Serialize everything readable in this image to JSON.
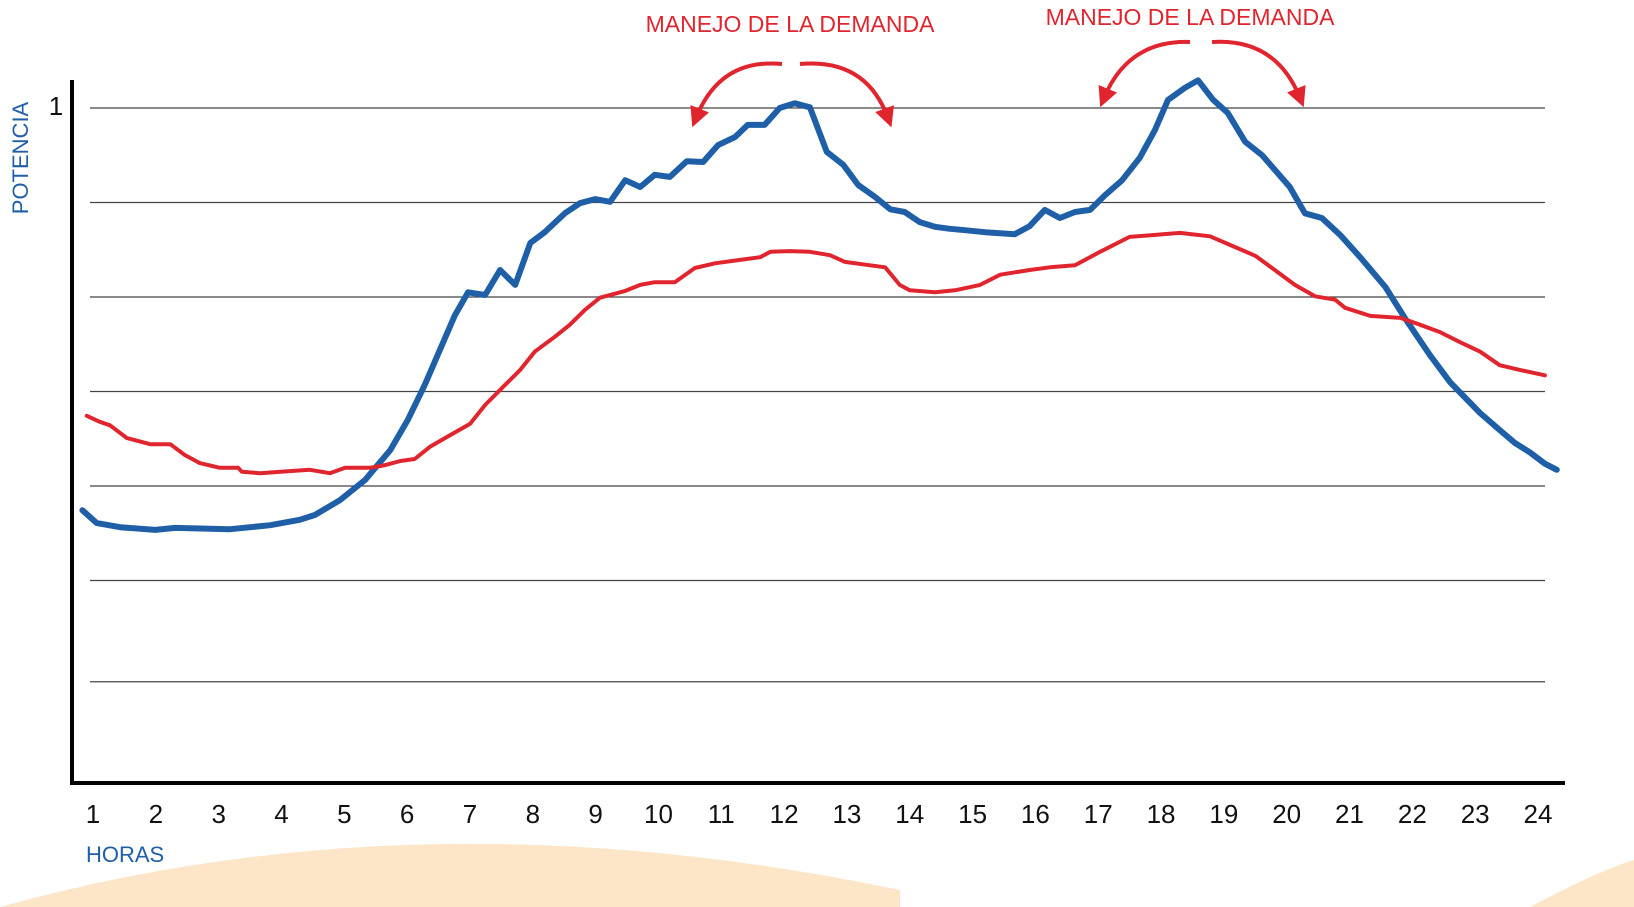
{
  "chart_data": {
    "type": "line",
    "annotations": [
      "MANEJO DE LA DEMANDA",
      "MANEJO DE LA DEMANDA"
    ],
    "y_label": "POTENCIA",
    "x_label": "HORAS",
    "xlim": [
      0.665,
      24.43
    ],
    "ylim": [
      0,
      1.06
    ],
    "xticks": [
      1,
      2,
      3,
      4,
      5,
      6,
      7,
      8,
      9,
      10,
      11,
      12,
      13,
      14,
      15,
      16,
      17,
      18,
      19,
      20,
      21,
      22,
      23,
      24
    ],
    "yticks": [
      1
    ],
    "ygrid": [
      0.15,
      0.3,
      0.44,
      0.58,
      0.72,
      0.86,
      1
    ],
    "grid": true,
    "series": [
      {
        "color": "#1f5fa8",
        "x": [
          0.83,
          1.06,
          1.43,
          1.99,
          2.31,
          3.18,
          3.82,
          4.29,
          4.53,
          4.93,
          5.33,
          5.73,
          6.01,
          6.28,
          6.76,
          6.97,
          7.24,
          7.48,
          7.72,
          7.96,
          8.19,
          8.51,
          8.75,
          8.99,
          9.23,
          9.47,
          9.71,
          9.94,
          10.18,
          10.45,
          10.71,
          10.95,
          11.22,
          11.42,
          11.69,
          11.93,
          12.17,
          12.41,
          12.68,
          12.94,
          13.18,
          13.45,
          13.69,
          13.92,
          14.16,
          14.4,
          14.64,
          14.88,
          15.2,
          15.67,
          15.91,
          16.15,
          16.39,
          16.63,
          16.87,
          17.11,
          17.38,
          17.66,
          17.9,
          18.11,
          18.38,
          18.59,
          18.83,
          19.06,
          19.34,
          19.61,
          20.05,
          20.29,
          20.56,
          20.85,
          21.17,
          21.57,
          21.88,
          22.28,
          22.6,
          23.08,
          23.39,
          23.63,
          23.87,
          24.11,
          24.3
        ],
        "values": [
          0.404,
          0.385,
          0.379,
          0.375,
          0.378,
          0.376,
          0.382,
          0.39,
          0.397,
          0.419,
          0.449,
          0.493,
          0.538,
          0.59,
          0.693,
          0.727,
          0.723,
          0.76,
          0.738,
          0.8,
          0.816,
          0.844,
          0.859,
          0.865,
          0.861,
          0.893,
          0.883,
          0.901,
          0.898,
          0.921,
          0.92,
          0.945,
          0.957,
          0.975,
          0.975,
          1.0,
          1.007,
          1.001,
          0.935,
          0.916,
          0.886,
          0.868,
          0.85,
          0.846,
          0.831,
          0.824,
          0.821,
          0.819,
          0.816,
          0.813,
          0.825,
          0.849,
          0.837,
          0.846,
          0.849,
          0.871,
          0.893,
          0.926,
          0.967,
          1.012,
          1.03,
          1.041,
          1.012,
          0.993,
          0.95,
          0.93,
          0.883,
          0.844,
          0.837,
          0.812,
          0.779,
          0.735,
          0.689,
          0.634,
          0.594,
          0.548,
          0.523,
          0.504,
          0.49,
          0.473,
          0.464
        ]
      },
      {
        "color": "#e0252f",
        "x": [
          0.9,
          1.11,
          1.27,
          1.54,
          1.91,
          2.23,
          2.46,
          2.7,
          3.02,
          3.31,
          3.37,
          3.66,
          3.98,
          4.45,
          4.77,
          5.01,
          5.41,
          5.65,
          5.89,
          6.12,
          6.36,
          6.6,
          7.0,
          7.24,
          7.56,
          7.8,
          8.03,
          8.35,
          8.59,
          8.83,
          9.07,
          9.47,
          9.71,
          9.94,
          10.26,
          10.58,
          10.9,
          11.3,
          11.62,
          11.78,
          12.09,
          12.41,
          12.73,
          12.97,
          13.37,
          13.61,
          13.84,
          14.0,
          14.4,
          14.72,
          15.12,
          15.44,
          15.91,
          16.23,
          16.63,
          17.03,
          17.5,
          18.3,
          18.78,
          19.18,
          19.5,
          19.81,
          20.13,
          20.45,
          20.77,
          20.93,
          21.33,
          21.81,
          22.12,
          22.44,
          22.76,
          23.08,
          23.39,
          23.71,
          24.11
        ],
        "values": [
          0.544,
          0.535,
          0.53,
          0.511,
          0.502,
          0.502,
          0.486,
          0.474,
          0.467,
          0.467,
          0.461,
          0.459,
          0.461,
          0.464,
          0.459,
          0.467,
          0.467,
          0.471,
          0.477,
          0.48,
          0.498,
          0.511,
          0.532,
          0.56,
          0.59,
          0.612,
          0.639,
          0.661,
          0.679,
          0.701,
          0.719,
          0.729,
          0.738,
          0.742,
          0.742,
          0.763,
          0.77,
          0.775,
          0.779,
          0.787,
          0.788,
          0.787,
          0.782,
          0.772,
          0.767,
          0.764,
          0.738,
          0.73,
          0.727,
          0.73,
          0.738,
          0.753,
          0.76,
          0.764,
          0.767,
          0.787,
          0.809,
          0.815,
          0.81,
          0.794,
          0.781,
          0.76,
          0.738,
          0.721,
          0.716,
          0.704,
          0.692,
          0.689,
          0.679,
          0.668,
          0.653,
          0.639,
          0.619,
          0.612,
          0.604
        ]
      }
    ]
  }
}
